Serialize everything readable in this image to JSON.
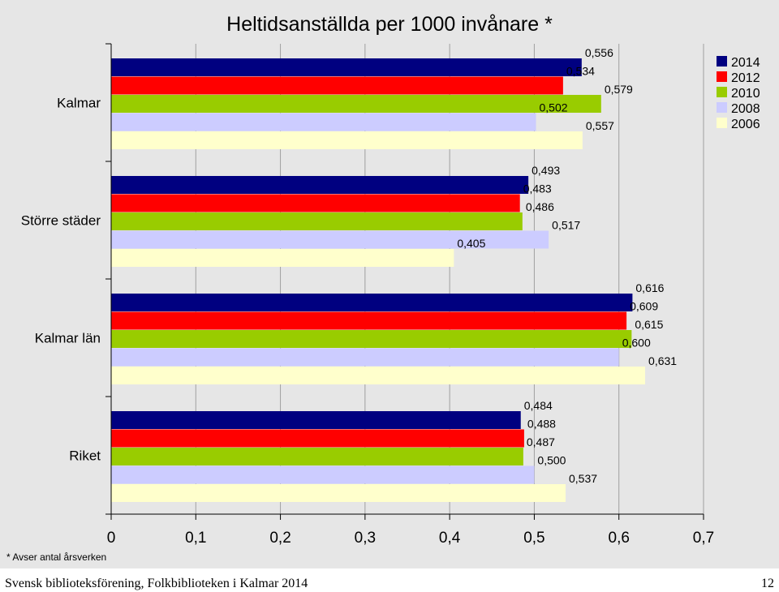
{
  "chart_data": {
    "type": "bar",
    "orientation": "horizontal",
    "title": "Heltidsanställda per 1000 invånare *",
    "categories": [
      "Kalmar",
      "Större städer",
      "Kalmar län",
      "Riket"
    ],
    "series": [
      {
        "name": "2014",
        "color": "#000080",
        "values": [
          0.556,
          0.493,
          0.616,
          0.484
        ],
        "labels": [
          "0,556",
          "0,493",
          "0,616",
          "0,484"
        ]
      },
      {
        "name": "2012",
        "color": "#ff0000",
        "values": [
          0.534,
          0.483,
          0.609,
          0.488
        ],
        "labels": [
          "0,534",
          "0,483",
          "0,609",
          "0,488"
        ]
      },
      {
        "name": "2010",
        "color": "#99cc00",
        "values": [
          0.579,
          0.486,
          0.615,
          0.487
        ],
        "labels": [
          "0,579",
          "0,486",
          "0,615",
          "0,487"
        ]
      },
      {
        "name": "2008",
        "color": "#ccccff",
        "values": [
          0.502,
          0.517,
          0.6,
          0.5
        ],
        "labels": [
          "0,502",
          "0,517",
          "0,600",
          "0,500"
        ]
      },
      {
        "name": "2006",
        "color": "#ffffcc",
        "values": [
          0.557,
          0.405,
          0.631,
          0.537
        ],
        "labels": [
          "0,557",
          "0,405",
          "0,631",
          "0,537"
        ]
      }
    ],
    "xlim": [
      0,
      0.7
    ],
    "xticks": [
      0,
      0.1,
      0.2,
      0.3,
      0.4,
      0.5,
      0.6,
      0.7
    ],
    "xtick_labels": [
      "0",
      "0,1",
      "0,2",
      "0,3",
      "0,4",
      "0,5",
      "0,6",
      "0,7"
    ],
    "grid": "vertical",
    "legend": "top-right"
  },
  "footnote": "* Avser antal årsverken",
  "footer": {
    "text": "Svensk biblioteksförening, Folkbiblioteken i Kalmar 2014",
    "page_number": "12"
  }
}
